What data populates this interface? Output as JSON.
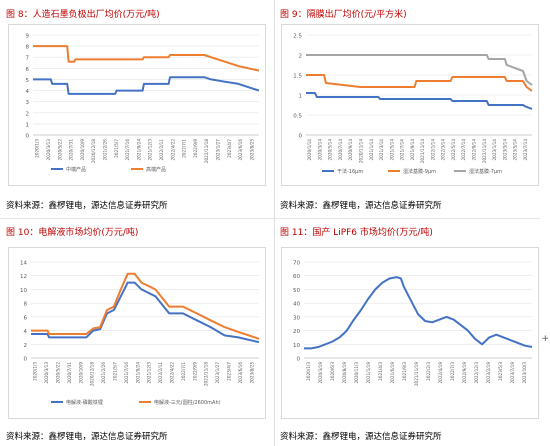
{
  "panels": [
    {
      "title": "图 8：人造石墨负极出厂均价(万元/吨)",
      "source": "资料来源：鑫椤锂电，源达信息证券研究所",
      "chart_data": {
        "type": "line",
        "ylim": [
          0,
          9
        ],
        "yticks": [
          0,
          1,
          2,
          3,
          4,
          5,
          6,
          7,
          8,
          9
        ],
        "xticks": [
          "2020/1/3",
          "2020/3/13",
          "2020/5/22",
          "2020/7/31",
          "2020/10/9",
          "2020/12/18",
          "2021/2/26",
          "2021/5/7",
          "2021/7/16",
          "2021/9/24",
          "2021/12/3",
          "2022/2/11",
          "2022/4/22",
          "2022/7/1",
          "2022/9/9",
          "2022/11/18",
          "2023/1/27",
          "2023/4/7",
          "2023/6/16",
          "2023/8/25"
        ],
        "series": [
          {
            "name": "中端产品",
            "color": "#4472c4",
            "x": [
              0,
              13,
              14,
              25,
              26,
              60,
              61,
              80,
              81,
              99,
              100,
              110,
              120,
              125,
              130,
              140,
              150,
              165
            ],
            "y": [
              5.0,
              5.0,
              4.6,
              4.6,
              3.7,
              3.7,
              4.0,
              4.0,
              4.6,
              4.6,
              5.2,
              5.2,
              5.2,
              5.2,
              5.0,
              4.8,
              4.6,
              4.0
            ]
          },
          {
            "name": "高端产品",
            "color": "#ed7d31",
            "x": [
              0,
              25,
              26,
              30,
              31,
              60,
              61,
              80,
              81,
              99,
              100,
              110,
              120,
              125,
              130,
              140,
              150,
              165
            ],
            "y": [
              8.0,
              8.0,
              6.6,
              6.6,
              6.8,
              6.8,
              6.8,
              6.8,
              7.0,
              7.0,
              7.2,
              7.2,
              7.2,
              7.2,
              7.0,
              6.6,
              6.2,
              5.8
            ]
          }
        ]
      }
    },
    {
      "title": "图 9：隔膜出厂均价(元/平方米)",
      "source": "资料来源：鑫椤锂电，源达信息证券研究所",
      "chart_data": {
        "type": "line",
        "ylim": [
          0,
          2.5
        ],
        "yticks": [
          0,
          0.5,
          1,
          1.5,
          2,
          2.5
        ],
        "xticks": [
          "2020/1/14",
          "2020/3/14",
          "2020/5/14",
          "2020/7/14",
          "2020/9/14",
          "2020/11/14",
          "2021/1/14",
          "2021/3/14",
          "2021/5/14",
          "2021/7/14",
          "2021/9/14",
          "2021/11/14",
          "2022/1/14",
          "2022/3/14",
          "2022/5/14",
          "2022/7/14",
          "2022/9/14",
          "2022/11/14",
          "2023/1/14",
          "2023/3/14",
          "2023/5/14",
          "2023/7/14"
        ],
        "series": [
          {
            "name": "干法-16μm",
            "color": "#4472c4",
            "x": [
              0,
              5,
              6,
              40,
              41,
              80,
              81,
              100,
              101,
              120,
              121,
              125
            ],
            "y": [
              1.05,
              1.05,
              0.95,
              0.95,
              0.9,
              0.9,
              0.85,
              0.85,
              0.75,
              0.75,
              0.72,
              0.65
            ]
          },
          {
            "name": "湿法基膜-9μm",
            "color": "#ed7d31",
            "x": [
              0,
              10,
              11,
              30,
              60,
              61,
              80,
              81,
              110,
              111,
              120,
              122,
              125
            ],
            "y": [
              1.5,
              1.5,
              1.3,
              1.2,
              1.2,
              1.35,
              1.35,
              1.45,
              1.45,
              1.35,
              1.35,
              1.2,
              1.1
            ]
          },
          {
            "name": "湿法基膜-7μm",
            "color": "#a5a5a5",
            "x": [
              0,
              40,
              90,
              100,
              101,
              110,
              111,
              120,
              122,
              125
            ],
            "y": [
              2.0,
              2.0,
              2.0,
              2.0,
              1.9,
              1.9,
              1.75,
              1.6,
              1.35,
              1.25
            ]
          }
        ]
      }
    },
    {
      "title": "图 10：电解液市场均价(万元/吨)",
      "source": "资料来源：鑫椤锂电，源达信息证券研究所",
      "chart_data": {
        "type": "line",
        "ylim": [
          0,
          14
        ],
        "yticks": [
          0,
          2,
          4,
          6,
          8,
          10,
          12,
          14
        ],
        "xticks": [
          "2020/1/3",
          "2020/3/13",
          "2020/5/22",
          "2020/7/31",
          "2020/10/9",
          "2020/12/18",
          "2021/2/26",
          "2021/5/7",
          "2021/7/16",
          "2021/9/24",
          "2021/12/3",
          "2022/2/11",
          "2022/4/22",
          "2022/7/1",
          "2022/9/9",
          "2022/11/18",
          "2023/1/27",
          "2023/4/7",
          "2023/6/16",
          "2023/8/25"
        ],
        "series": [
          {
            "name": "电解液-磷酸铁锂",
            "color": "#4472c4",
            "x": [
              0,
              12,
              13,
              40,
              45,
              50,
              55,
              60,
              65,
              70,
              75,
              80,
              90,
              100,
              102,
              110,
              120,
              130,
              140,
              150,
              165
            ],
            "y": [
              3.5,
              3.5,
              3.0,
              3.0,
              4.0,
              4.2,
              6.5,
              7.0,
              9.0,
              11.0,
              11.0,
              10.0,
              9.0,
              6.5,
              6.5,
              6.5,
              5.5,
              4.5,
              3.3,
              3.0,
              2.3
            ]
          },
          {
            "name": "电解液-三元(圆柱/2600mAh)",
            "color": "#ed7d31",
            "x": [
              0,
              12,
              13,
              40,
              45,
              50,
              55,
              60,
              65,
              70,
              75,
              80,
              90,
              100,
              102,
              110,
              120,
              130,
              140,
              150,
              165
            ],
            "y": [
              4.0,
              4.0,
              3.5,
              3.5,
              4.3,
              4.5,
              7.0,
              7.5,
              10.0,
              12.3,
              12.3,
              11.0,
              10.0,
              7.5,
              7.5,
              7.5,
              6.5,
              5.5,
              4.5,
              3.8,
              2.8
            ]
          }
        ]
      }
    },
    {
      "title": "图 11：国产 LiPF6 市场均价(万元/吨)",
      "source": "资料来源：鑫椤锂电，源达信息证券研究所",
      "chart_data": {
        "type": "line",
        "ylim": [
          0,
          70
        ],
        "yticks": [
          0,
          10,
          20,
          30,
          40,
          50,
          60,
          70
        ],
        "xticks": [
          "2020/1/3",
          "2020/3/19",
          "2020/6/3",
          "2020/8/19",
          "2020/11/3",
          "2021/1/19",
          "2021/4/3",
          "2021/6/19",
          "2021/9/3",
          "2021/11/19",
          "2022/2/3",
          "2022/4/19",
          "2022/7/3",
          "2022/9/19",
          "2022/12/3",
          "2023/2/19",
          "2023/5/3",
          "2023/7/19",
          "2023/10/3"
        ],
        "series": [
          {
            "name": "",
            "color": "#4472c4",
            "x": [
              0,
              5,
              10,
              15,
              20,
              25,
              30,
              35,
              40,
              45,
              50,
              55,
              60,
              65,
              68,
              70,
              75,
              80,
              85,
              90,
              95,
              100,
              105,
              110,
              115,
              120,
              125,
              130,
              135,
              140,
              145,
              150,
              155,
              160
            ],
            "y": [
              7,
              7,
              8,
              10,
              12,
              15,
              20,
              28,
              35,
              43,
              50,
              55,
              58,
              59,
              58,
              52,
              42,
              32,
              27,
              26,
              28,
              30,
              28,
              24,
              20,
              14,
              10,
              15,
              17,
              15,
              13,
              11,
              9,
              8
            ]
          }
        ]
      }
    }
  ]
}
